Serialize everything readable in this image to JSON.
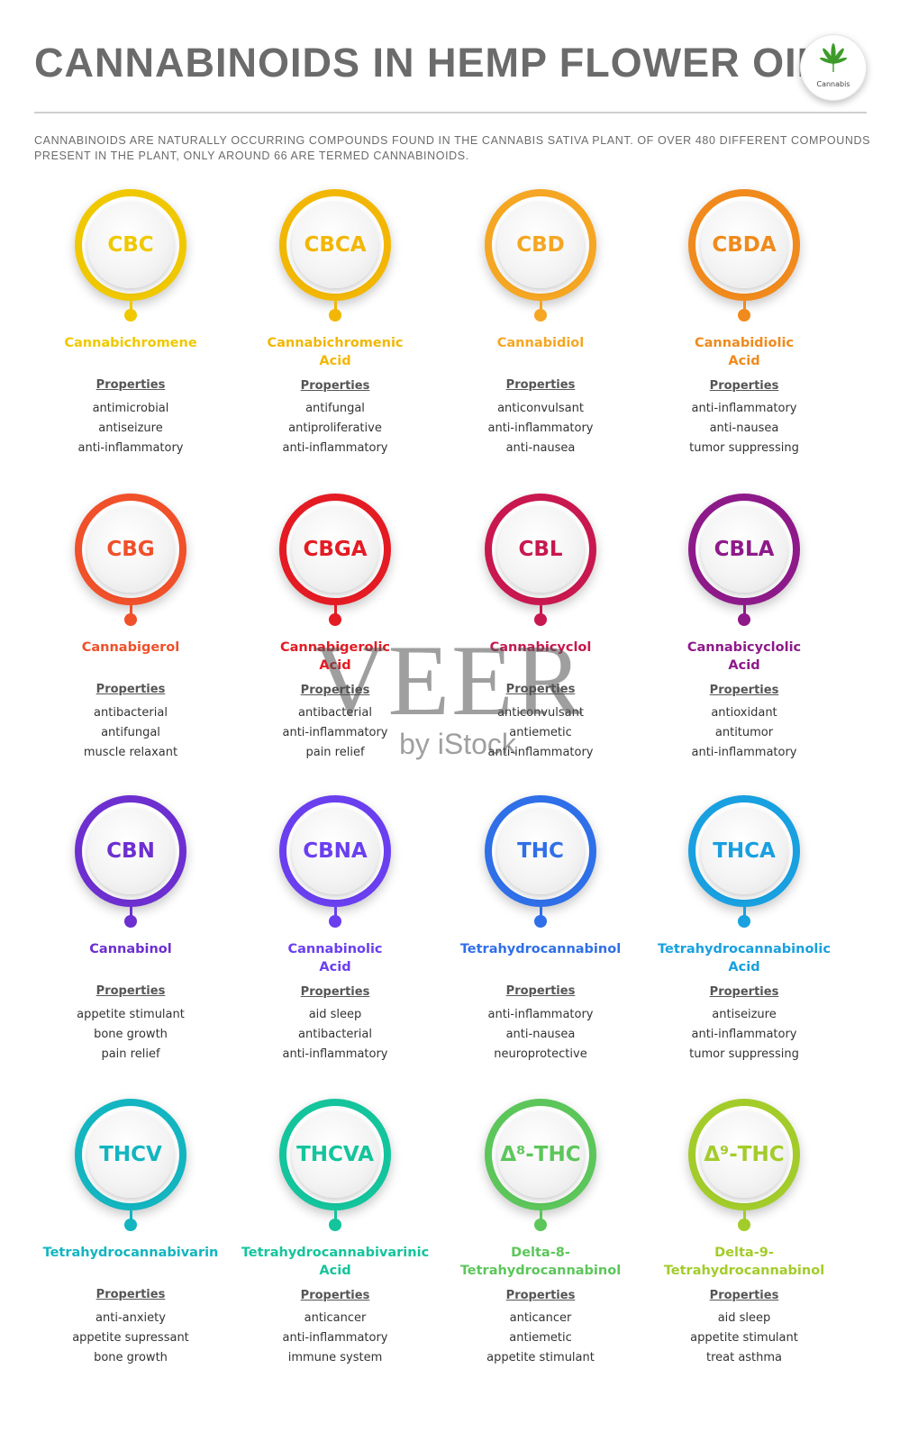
{
  "title": "CANNABINOIDS IN HEMP FLOWER OIL",
  "logo": {
    "label": "Cannabis",
    "icon": "cannabis-leaf-icon"
  },
  "intro": "CANNABINOIDS ARE NATURALLY OCCURRING COMPOUNDS FOUND IN THE CANNABIS SATIVA PLANT. OF OVER 480 DIFFERENT COMPOUNDS PRESENT IN THE PLANT, ONLY AROUND 66 ARE TERMED CANNABINOIDS.",
  "properties_label": "Properties",
  "watermark": {
    "main": "VEER",
    "sub": "by iStock"
  },
  "cannabinoids": [
    {
      "abbr": "CBC",
      "name": "Cannabichromene",
      "color": "#f0c800",
      "properties": [
        "antimicrobial",
        "antiseizure",
        "anti-inflammatory"
      ]
    },
    {
      "abbr": "CBCA",
      "name": "Cannabichromenic Acid",
      "color": "#f2b705",
      "properties": [
        "antifungal",
        "antiproliferative",
        "anti-inflammatory"
      ]
    },
    {
      "abbr": "CBD",
      "name": "Cannabidiol",
      "color": "#f5a623",
      "properties": [
        "anticonvulsant",
        "anti-inflammatory",
        "anti-nausea"
      ]
    },
    {
      "abbr": "CBDA",
      "name": "Cannabidiolic Acid",
      "color": "#f08a1c",
      "properties": [
        "anti-inflammatory",
        "anti-nausea",
        "tumor suppressing"
      ]
    },
    {
      "abbr": "CBG",
      "name": "Cannabigerol",
      "color": "#f0502a",
      "properties": [
        "antibacterial",
        "antifungal",
        "muscle relaxant"
      ]
    },
    {
      "abbr": "CBGA",
      "name": "Cannabigerolic Acid",
      "color": "#e41b23",
      "properties": [
        "antibacterial",
        "anti-inflammatory",
        "pain relief"
      ]
    },
    {
      "abbr": "CBL",
      "name": "Cannabicyclol",
      "color": "#c8184f",
      "properties": [
        "anticonvulsant",
        "antiemetic",
        "anti-inflammatory"
      ]
    },
    {
      "abbr": "CBLA",
      "name": "Cannabicyclolic Acid",
      "color": "#8e1a8a",
      "properties": [
        "antioxidant",
        "antitumor",
        "anti-inflammatory"
      ]
    },
    {
      "abbr": "CBN",
      "name": "Cannabinol",
      "color": "#6d2fd0",
      "properties": [
        "appetite stimulant",
        "bone growth",
        "pain relief"
      ]
    },
    {
      "abbr": "CBNA",
      "name": "Cannabinolic Acid",
      "color": "#6a3ff0",
      "properties": [
        "aid sleep",
        "antibacterial",
        "anti-inflammatory"
      ]
    },
    {
      "abbr": "THC",
      "name": "Tetrahydrocannabinol",
      "color": "#2f6fe8",
      "properties": [
        "anti-inflammatory",
        "anti-nausea",
        "neuroprotective"
      ]
    },
    {
      "abbr": "THCA",
      "name": "Tetrahydrocannabinolic Acid",
      "color": "#18a0e0",
      "properties": [
        "antiseizure",
        "anti-inflammatory",
        "tumor suppressing"
      ]
    },
    {
      "abbr": "THCV",
      "name": "Tetrahydrocannabivarin",
      "color": "#12b5c0",
      "properties": [
        "anti-anxiety",
        "appetite supressant",
        "bone growth"
      ]
    },
    {
      "abbr": "THCVA",
      "name": "Tetrahydrocannabivarinic Acid",
      "color": "#14c49c",
      "properties": [
        "anticancer",
        "anti-inflammatory",
        "immune system"
      ]
    },
    {
      "abbr": "Δ⁸-THC",
      "name": "Delta-8-Tetrahydrocannabinol",
      "color": "#5cc65a",
      "properties": [
        "anticancer",
        "antiemetic",
        "appetite stimulant"
      ]
    },
    {
      "abbr": "Δ⁹-THC",
      "name": "Delta-9-Tetrahydrocannabinol",
      "color": "#a3cc2a",
      "properties": [
        "aid sleep",
        "appetite stimulant",
        "treat asthma"
      ]
    }
  ]
}
